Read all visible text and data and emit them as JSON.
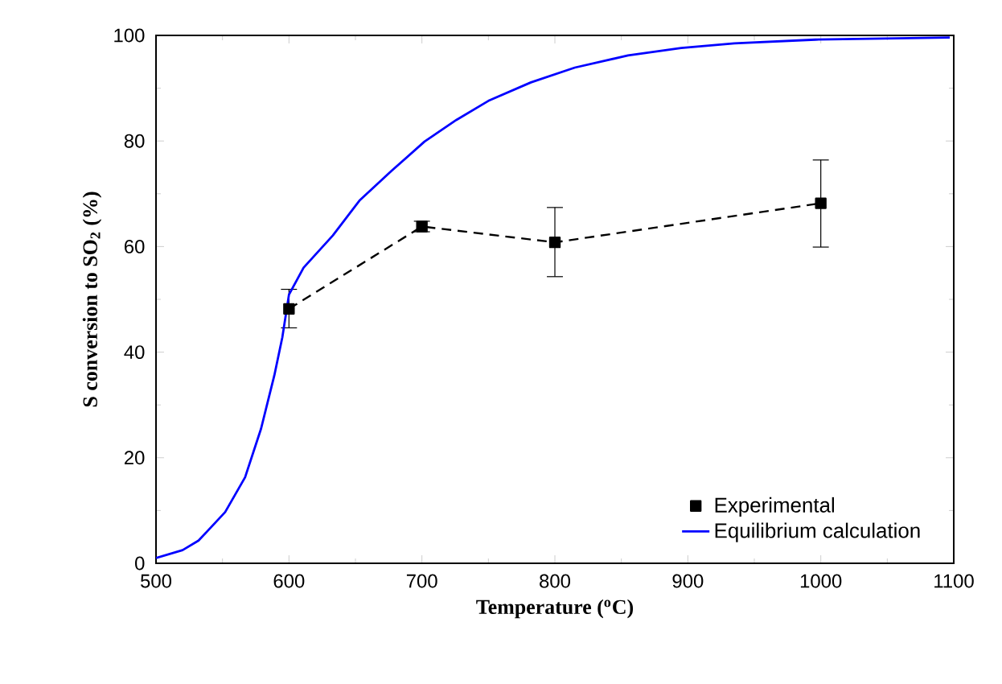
{
  "chart_data": {
    "type": "line",
    "xlabel": "Temperature ($^{o}$C)",
    "ylabel": "S conversion to SO$_{2}$ (%)",
    "xlim": [
      500,
      1100
    ],
    "xticks": [
      500,
      600,
      700,
      800,
      900,
      1000,
      1100
    ],
    "ylim": [
      0,
      100
    ],
    "yticks": [
      0,
      20,
      40,
      60,
      80,
      100
    ],
    "legend": "bottom right",
    "series": [
      {
        "name": "Experimental",
        "color": "#000000",
        "marker": "square",
        "line_style": "dashed",
        "x": [
          600,
          700,
          800,
          1000
        ],
        "values": [
          48.2,
          63.8,
          60.8,
          68.2
        ],
        "errors": [
          [
            44.6,
            51.9
          ],
          1,
          [
            54.3,
            67.4
          ],
          [
            59.9,
            76.4
          ]
        ]
      },
      {
        "name": "Equilibrium calculation",
        "color": "#0000ff",
        "marker": "none",
        "line_style": "solid",
        "x": [
          500,
          520,
          532,
          552,
          567,
          579,
          589,
          595,
          600,
          611,
          633,
          653,
          677,
          702,
          726,
          750,
          782,
          815,
          855,
          895,
          935,
          996,
          1097
        ],
        "values": [
          1.0,
          2.5,
          4.3,
          9.7,
          16.3,
          25.5,
          35.6,
          42.8,
          50.9,
          56.0,
          62.1,
          68.7,
          74.3,
          79.9,
          84.0,
          87.6,
          91.1,
          93.9,
          96.2,
          97.6,
          98.5,
          99.2,
          99.6
        ]
      }
    ]
  }
}
